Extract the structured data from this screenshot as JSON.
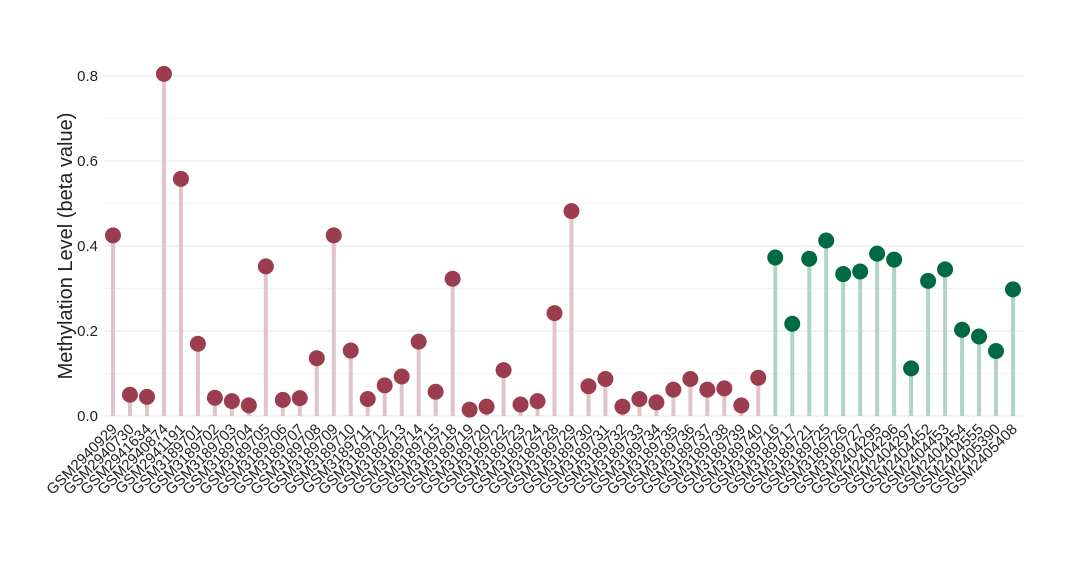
{
  "chart_data": {
    "type": "lollipop",
    "ylabel": "Methylation Level (beta value)",
    "xlabel": "",
    "ylim": [
      0,
      0.85
    ],
    "yticks": [
      0.0,
      0.2,
      0.4,
      0.6,
      0.8
    ],
    "grid": true,
    "colors": {
      "group1": "#9b3d4f",
      "group1_stem": "#e0c4cb",
      "group2": "#006a43",
      "group2_stem": "#b2d4c7"
    },
    "categories": [
      "GSM2940929",
      "GSM2940730",
      "GSM2941634",
      "GSM2940874",
      "GSM2941191",
      "GSM3189701",
      "GSM3189702",
      "GSM3189703",
      "GSM3189704",
      "GSM3189705",
      "GSM3189706",
      "GSM3189707",
      "GSM3189708",
      "GSM3189709",
      "GSM3189710",
      "GSM3189711",
      "GSM3189712",
      "GSM3189713",
      "GSM3189714",
      "GSM3189715",
      "GSM3189718",
      "GSM3189719",
      "GSM3189720",
      "GSM3189722",
      "GSM3189723",
      "GSM3189724",
      "GSM3189728",
      "GSM3189729",
      "GSM3189730",
      "GSM3189731",
      "GSM3189732",
      "GSM3189733",
      "GSM3189734",
      "GSM3189735",
      "GSM3189736",
      "GSM3189737",
      "GSM3189738",
      "GSM3189739",
      "GSM3189740",
      "GSM3189716",
      "GSM3189717",
      "GSM3189721",
      "GSM3189725",
      "GSM3189726",
      "GSM3189727",
      "GSM2404295",
      "GSM2404296",
      "GSM2404297",
      "GSM2404452",
      "GSM2404453",
      "GSM2404454",
      "GSM2404555",
      "GSM2405390",
      "GSM2405408"
    ],
    "values": [
      0.425,
      0.05,
      0.045,
      0.805,
      0.558,
      0.17,
      0.043,
      0.035,
      0.025,
      0.352,
      0.038,
      0.042,
      0.136,
      0.425,
      0.154,
      0.04,
      0.072,
      0.093,
      0.175,
      0.057,
      0.323,
      0.015,
      0.022,
      0.108,
      0.027,
      0.035,
      0.242,
      0.482,
      0.07,
      0.087,
      0.022,
      0.04,
      0.032,
      0.062,
      0.087,
      0.062,
      0.065,
      0.025,
      0.09,
      0.373,
      0.217,
      0.37,
      0.413,
      0.334,
      0.34,
      0.382,
      0.368,
      0.112,
      0.318,
      0.345,
      0.203,
      0.187,
      0.153,
      0.298
    ],
    "groups": [
      1,
      1,
      1,
      1,
      1,
      1,
      1,
      1,
      1,
      1,
      1,
      1,
      1,
      1,
      1,
      1,
      1,
      1,
      1,
      1,
      1,
      1,
      1,
      1,
      1,
      1,
      1,
      1,
      1,
      1,
      1,
      1,
      1,
      1,
      1,
      1,
      1,
      1,
      1,
      2,
      2,
      2,
      2,
      2,
      2,
      2,
      2,
      2,
      2,
      2,
      2,
      2,
      2,
      2
    ]
  }
}
